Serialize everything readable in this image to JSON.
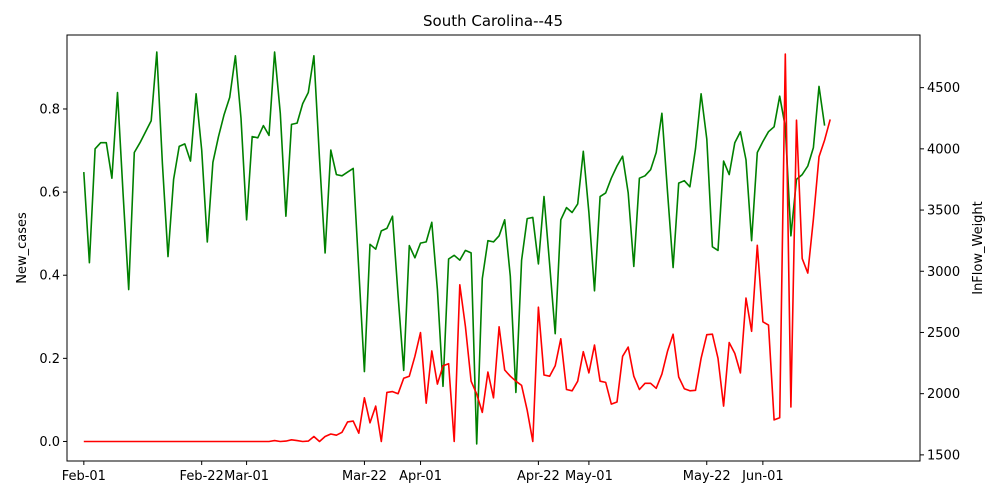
{
  "chart_data": {
    "type": "line",
    "title": "South Carolina--45",
    "xlabel": "",
    "ylabel_left": "New_cases",
    "ylabel_right": "InFlow_Weight",
    "ylim_left": [
      -0.047,
      0.978
    ],
    "ylim_right": [
      1450,
      4930
    ],
    "yticks_left": [
      "0.0",
      "0.2",
      "0.4",
      "0.6",
      "0.8"
    ],
    "yticks_right": [
      "1500",
      "2000",
      "2500",
      "3000",
      "3500",
      "4000",
      "4500"
    ],
    "xlim": [
      "2020-01-29",
      "2020-06-29"
    ],
    "xticks": [
      {
        "date": "2020-02-01",
        "label": "Feb-01"
      },
      {
        "date": "2020-02-22",
        "label": "Feb-22"
      },
      {
        "date": "2020-03-01",
        "label": "Mar-01"
      },
      {
        "date": "2020-03-22",
        "label": "Mar-22"
      },
      {
        "date": "2020-04-01",
        "label": "Apr-01"
      },
      {
        "date": "2020-04-22",
        "label": "Apr-22"
      },
      {
        "date": "2020-05-01",
        "label": "May-01"
      },
      {
        "date": "2020-05-22",
        "label": "May-22"
      },
      {
        "date": "2020-06-01",
        "label": "Jun-01"
      }
    ],
    "grid": false,
    "start_date": "2020-02-01",
    "series": [
      {
        "axis": "right",
        "color": "#008000",
        "values": [
          3810,
          3070,
          4000,
          4050,
          4050,
          3760,
          4460,
          3630,
          2850,
          3970,
          4050,
          4140,
          4230,
          4790,
          3880,
          3120,
          3750,
          4020,
          4040,
          3900,
          4450,
          3990,
          3240,
          3890,
          4100,
          4280,
          4420,
          4760,
          4250,
          3420,
          4100,
          4090,
          4190,
          4110,
          4790,
          4290,
          3450,
          4200,
          4210,
          4370,
          4460,
          4760,
          3920,
          3150,
          3990,
          3790,
          3780,
          3810,
          3840,
          3010,
          2180,
          3220,
          3180,
          3330,
          3350,
          3450,
          2800,
          2190,
          3210,
          3110,
          3230,
          3240,
          3400,
          2850,
          2060,
          3100,
          3130,
          3090,
          3170,
          3150,
          1590,
          2940,
          3250,
          3240,
          3290,
          3420,
          2960,
          2010,
          3090,
          3430,
          3440,
          3060,
          3610,
          3060,
          2490,
          3420,
          3520,
          3480,
          3550,
          3980,
          3480,
          2840,
          3610,
          3640,
          3760,
          3860,
          3940,
          3640,
          3040,
          3760,
          3780,
          3830,
          3970,
          4290,
          3650,
          3030,
          3720,
          3740,
          3690,
          4000,
          4450,
          4080,
          3200,
          3170,
          3900,
          3790,
          4050,
          4140,
          3910,
          3250,
          3970,
          4060,
          4140,
          4180,
          4430,
          4180,
          3290,
          3750,
          3790,
          3860,
          4010,
          4510,
          4190
        ]
      },
      {
        "axis": "left",
        "color": "#ff0000",
        "values": [
          0,
          0,
          0,
          0,
          0,
          0,
          0,
          0,
          0,
          0,
          0,
          0,
          0,
          0,
          0,
          0,
          0,
          0,
          0,
          0,
          0,
          0,
          0,
          0,
          0,
          0,
          0,
          0,
          0,
          0,
          0,
          0,
          0,
          0,
          0.002,
          0,
          0.001,
          0.004,
          0.002,
          0,
          0.001,
          0.012,
          0,
          0.012,
          0.018,
          0.015,
          0.022,
          0.047,
          0.049,
          0.02,
          0.105,
          0.045,
          0.085,
          0,
          0.118,
          0.12,
          0.115,
          0.152,
          0.157,
          0.205,
          0.262,
          0.092,
          0.218,
          0.138,
          0.182,
          0.187,
          0,
          0.377,
          0.277,
          0.145,
          0.114,
          0.07,
          0.167,
          0.105,
          0.276,
          0.172,
          0.157,
          0.145,
          0.135,
          0.075,
          0,
          0.323,
          0.16,
          0.157,
          0.182,
          0.247,
          0.125,
          0.122,
          0.145,
          0.216,
          0.165,
          0.232,
          0.145,
          0.142,
          0.09,
          0.095,
          0.205,
          0.227,
          0.157,
          0.125,
          0.14,
          0.14,
          0.128,
          0.162,
          0.217,
          0.258,
          0.155,
          0.127,
          0.122,
          0.123,
          0.2,
          0.257,
          0.258,
          0.2,
          0.085,
          0.238,
          0.212,
          0.165,
          0.345,
          0.265,
          0.472,
          0.288,
          0.28,
          0.052,
          0.057,
          0.932,
          0.083,
          0.773,
          0.44,
          0.405,
          0.535,
          0.685,
          0.725,
          0.775
        ]
      }
    ]
  }
}
